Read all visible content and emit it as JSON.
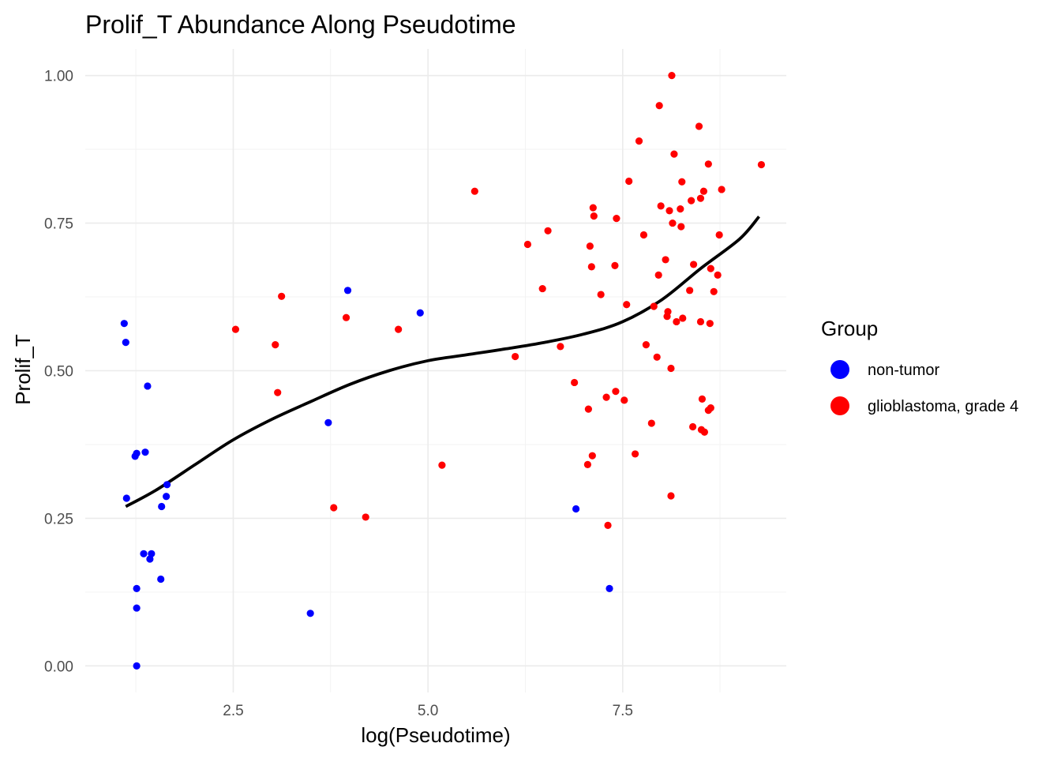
{
  "chart_data": {
    "type": "scatter",
    "title": "Prolif_T Abundance Along Pseudotime",
    "xlabel": "log(Pseudotime)",
    "ylabel": "Prolif_T",
    "xlim": [
      0.6,
      9.6
    ],
    "ylim": [
      -0.045,
      1.045
    ],
    "x_ticks": [
      2.5,
      5.0,
      7.5
    ],
    "x_tick_labels": [
      "2.5",
      "5.0",
      "7.5"
    ],
    "y_ticks": [
      0.0,
      0.25,
      0.5,
      0.75,
      1.0
    ],
    "y_tick_labels": [
      "0.00",
      "0.25",
      "0.50",
      "0.75",
      "1.00"
    ],
    "grid": true,
    "legend": {
      "title": "Group",
      "position": "right"
    },
    "series": [
      {
        "name": "non-tumor",
        "color": "#0000ff",
        "points": [
          [
            1.1,
            0.58
          ],
          [
            1.12,
            0.548
          ],
          [
            1.13,
            0.284
          ],
          [
            1.24,
            0.355
          ],
          [
            1.26,
            0.36
          ],
          [
            1.26,
            0.131
          ],
          [
            1.26,
            0.098
          ],
          [
            1.26,
            0.0
          ],
          [
            1.37,
            0.362
          ],
          [
            1.4,
            0.474
          ],
          [
            1.35,
            0.19
          ],
          [
            1.43,
            0.181
          ],
          [
            1.45,
            0.19
          ],
          [
            1.57,
            0.147
          ],
          [
            1.58,
            0.27
          ],
          [
            1.64,
            0.287
          ],
          [
            1.65,
            0.307
          ],
          [
            3.49,
            0.089
          ],
          [
            3.72,
            0.412
          ],
          [
            3.97,
            0.636
          ],
          [
            4.9,
            0.598
          ],
          [
            6.9,
            0.266
          ],
          [
            7.33,
            0.131
          ]
        ]
      },
      {
        "name": "glioblastoma, grade 4",
        "color": "#ff0000",
        "points": [
          [
            2.53,
            0.57
          ],
          [
            3.04,
            0.544
          ],
          [
            3.07,
            0.463
          ],
          [
            3.12,
            0.626
          ],
          [
            3.79,
            0.268
          ],
          [
            3.95,
            0.59
          ],
          [
            4.2,
            0.252
          ],
          [
            4.62,
            0.57
          ],
          [
            5.18,
            0.34
          ],
          [
            5.6,
            0.804
          ],
          [
            6.12,
            0.524
          ],
          [
            6.28,
            0.714
          ],
          [
            6.47,
            0.639
          ],
          [
            6.54,
            0.737
          ],
          [
            6.7,
            0.541
          ],
          [
            6.88,
            0.48
          ],
          [
            7.05,
            0.341
          ],
          [
            7.06,
            0.435
          ],
          [
            7.08,
            0.711
          ],
          [
            7.1,
            0.676
          ],
          [
            7.12,
            0.776
          ],
          [
            7.13,
            0.762
          ],
          [
            7.11,
            0.356
          ],
          [
            7.22,
            0.629
          ],
          [
            7.29,
            0.455
          ],
          [
            7.31,
            0.238
          ],
          [
            7.4,
            0.678
          ],
          [
            7.41,
            0.465
          ],
          [
            7.42,
            0.758
          ],
          [
            7.52,
            0.45
          ],
          [
            7.55,
            0.612
          ],
          [
            7.58,
            0.821
          ],
          [
            7.66,
            0.359
          ],
          [
            7.71,
            0.889
          ],
          [
            7.77,
            0.73
          ],
          [
            7.8,
            0.544
          ],
          [
            7.87,
            0.411
          ],
          [
            7.9,
            0.609
          ],
          [
            7.94,
            0.523
          ],
          [
            7.96,
            0.662
          ],
          [
            7.97,
            0.949
          ],
          [
            7.99,
            0.779
          ],
          [
            8.05,
            0.688
          ],
          [
            8.07,
            0.592
          ],
          [
            8.08,
            0.6
          ],
          [
            8.1,
            0.771
          ],
          [
            8.12,
            0.504
          ],
          [
            8.12,
            0.288
          ],
          [
            8.13,
            1.0
          ],
          [
            8.14,
            0.75
          ],
          [
            8.16,
            0.867
          ],
          [
            8.19,
            0.583
          ],
          [
            8.24,
            0.774
          ],
          [
            8.25,
            0.744
          ],
          [
            8.26,
            0.82
          ],
          [
            8.27,
            0.589
          ],
          [
            8.36,
            0.636
          ],
          [
            8.38,
            0.788
          ],
          [
            8.4,
            0.405
          ],
          [
            8.41,
            0.68
          ],
          [
            8.48,
            0.914
          ],
          [
            8.5,
            0.792
          ],
          [
            8.5,
            0.583
          ],
          [
            8.51,
            0.4
          ],
          [
            8.52,
            0.452
          ],
          [
            8.54,
            0.804
          ],
          [
            8.55,
            0.396
          ],
          [
            8.6,
            0.85
          ],
          [
            8.62,
            0.58
          ],
          [
            8.63,
            0.673
          ],
          [
            8.6,
            0.433
          ],
          [
            8.63,
            0.437
          ],
          [
            8.67,
            0.634
          ],
          [
            8.72,
            0.662
          ],
          [
            8.74,
            0.73
          ],
          [
            8.77,
            0.807
          ],
          [
            9.28,
            0.849
          ]
        ]
      }
    ],
    "smooth_line": {
      "color": "#000000",
      "points": [
        [
          1.12,
          0.27
        ],
        [
          1.5,
          0.297
        ],
        [
          2.0,
          0.34
        ],
        [
          2.5,
          0.383
        ],
        [
          3.0,
          0.418
        ],
        [
          3.5,
          0.448
        ],
        [
          4.0,
          0.477
        ],
        [
          4.5,
          0.5
        ],
        [
          5.0,
          0.517
        ],
        [
          5.5,
          0.527
        ],
        [
          6.0,
          0.537
        ],
        [
          6.5,
          0.548
        ],
        [
          7.0,
          0.562
        ],
        [
          7.5,
          0.583
        ],
        [
          8.0,
          0.62
        ],
        [
          8.5,
          0.673
        ],
        [
          9.0,
          0.723
        ],
        [
          9.25,
          0.761
        ]
      ]
    }
  }
}
